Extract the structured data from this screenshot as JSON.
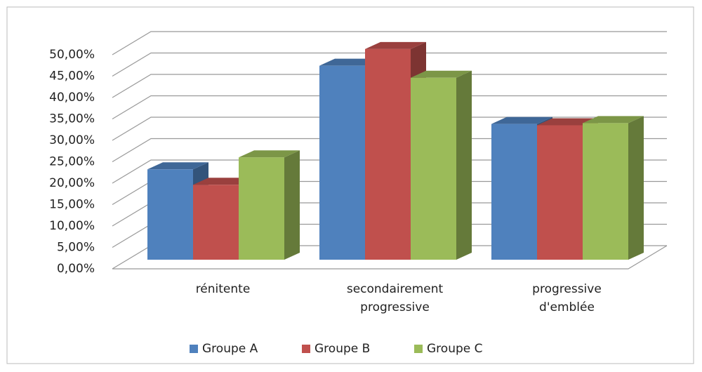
{
  "chart_data": {
    "type": "bar3d",
    "categories": [
      "rénitente",
      "secondairement progressive",
      "progressive d'emblée"
    ],
    "series": [
      {
        "name": "Groupe A",
        "color": "#4f81bd",
        "values": [
          21.1,
          45.3,
          31.7
        ]
      },
      {
        "name": "Groupe B",
        "color": "#c0504d",
        "values": [
          17.5,
          49.2,
          31.4
        ]
      },
      {
        "name": "Groupe C",
        "color": "#9bbb59",
        "values": [
          23.9,
          42.5,
          31.9
        ]
      }
    ],
    "ylim": [
      0,
      50
    ],
    "yticks": [
      {
        "value": 0,
        "label": "0,00%"
      },
      {
        "value": 5,
        "label": "5,00%"
      },
      {
        "value": 10,
        "label": "10,00%"
      },
      {
        "value": 15,
        "label": "15,00%"
      },
      {
        "value": 20,
        "label": "20,00%"
      },
      {
        "value": 25,
        "label": "25,00%"
      },
      {
        "value": 30,
        "label": "30,00%"
      },
      {
        "value": 35,
        "label": "35,00%"
      },
      {
        "value": 40,
        "label": "40,00%"
      },
      {
        "value": 45,
        "label": "45,00%"
      },
      {
        "value": 50,
        "label": "50,00%"
      }
    ],
    "grid": true,
    "legend": "bottom"
  }
}
